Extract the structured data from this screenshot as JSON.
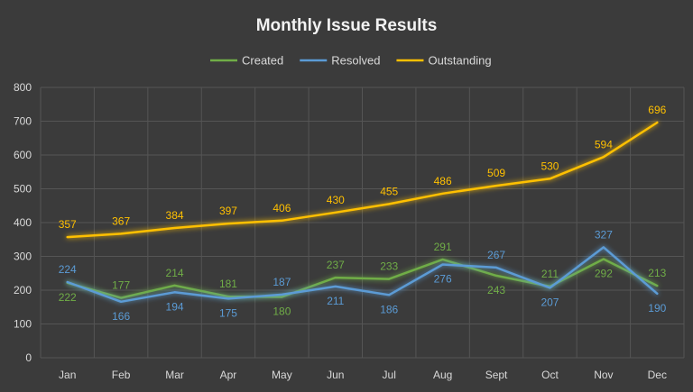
{
  "chart_data": {
    "type": "line",
    "title": "Monthly Issue Results",
    "categories": [
      "Jan",
      "Feb",
      "Mar",
      "Apr",
      "May",
      "Jun",
      "Jul",
      "Aug",
      "Sept",
      "Oct",
      "Nov",
      "Dec"
    ],
    "ylim": [
      0,
      800
    ],
    "yticks": [
      0,
      100,
      200,
      300,
      400,
      500,
      600,
      700,
      800
    ],
    "grid": true,
    "legend": "top",
    "series": [
      {
        "name": "Created",
        "color": "#70ad47",
        "values": [
          222,
          177,
          214,
          181,
          180,
          237,
          233,
          291,
          243,
          211,
          292,
          213
        ],
        "label_pos": [
          "below",
          "above",
          "above",
          "above",
          "below",
          "above",
          "above",
          "above",
          "below",
          "above",
          "below",
          "above"
        ]
      },
      {
        "name": "Resolved",
        "color": "#5b9bd5",
        "values": [
          224,
          166,
          194,
          175,
          187,
          211,
          186,
          276,
          267,
          207,
          327,
          190
        ],
        "label_pos": [
          "above",
          "below",
          "below",
          "below",
          "above",
          "below",
          "below",
          "below",
          "above",
          "below",
          "above",
          "below"
        ]
      },
      {
        "name": "Outstanding",
        "color": "#ffc000",
        "values": [
          357,
          367,
          384,
          397,
          406,
          430,
          455,
          486,
          509,
          530,
          594,
          696
        ],
        "label_pos": [
          "above",
          "above",
          "above",
          "above",
          "above",
          "above",
          "above",
          "above",
          "above",
          "above",
          "above",
          "above"
        ]
      }
    ]
  }
}
